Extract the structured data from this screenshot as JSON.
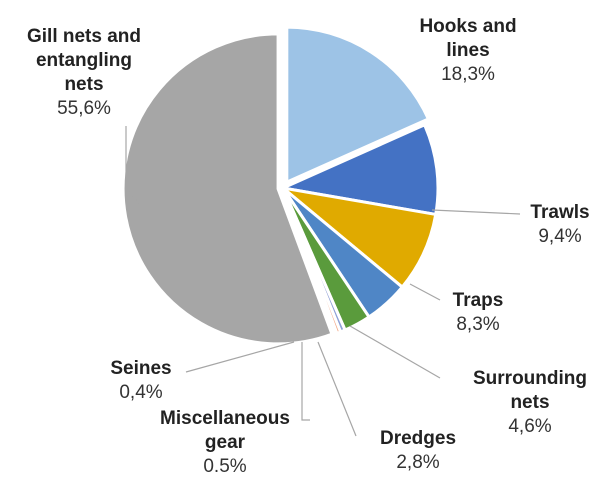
{
  "chart_data": {
    "type": "pie",
    "title": "",
    "slices": [
      {
        "name_lines": [
          "Hooks and",
          "lines"
        ],
        "label": "Hooks and lines",
        "value": 18.3,
        "value_text": "18,3%",
        "color": "#9dc3e6"
      },
      {
        "name_lines": [
          "Trawls"
        ],
        "label": "Trawls",
        "value": 9.4,
        "value_text": "9,4%",
        "color": "#4472c4"
      },
      {
        "name_lines": [
          "Traps"
        ],
        "label": "Traps",
        "value": 8.3,
        "value_text": "8,3%",
        "color": "#e0aa00"
      },
      {
        "name_lines": [
          "Surrounding",
          "nets"
        ],
        "label": "Surrounding nets",
        "value": 4.6,
        "value_text": "4,6%",
        "color": "#4f86c6"
      },
      {
        "name_lines": [
          "Dredges"
        ],
        "label": "Dredges",
        "value": 2.8,
        "value_text": "2,8%",
        "color": "#5a9b3c"
      },
      {
        "name_lines": [
          "Miscellaneous",
          "gear"
        ],
        "label": "Miscellaneous gear",
        "value": 0.5,
        "value_text": "0.5%",
        "color": "#8e9fd6"
      },
      {
        "name_lines": [
          "Seines"
        ],
        "label": "Seines",
        "value": 0.4,
        "value_text": "0,4%",
        "color": "#f4a582"
      },
      {
        "name_lines": [
          "Gill nets and",
          "entangling",
          "nets"
        ],
        "label": "Gill nets and entangling nets",
        "value": 55.6,
        "value_text": "55,6%",
        "color": "#a6a6a6"
      }
    ],
    "start_angle_deg": 0,
    "direction": "clockwise",
    "legend": "none",
    "data_labels": "outside with leader lines"
  }
}
